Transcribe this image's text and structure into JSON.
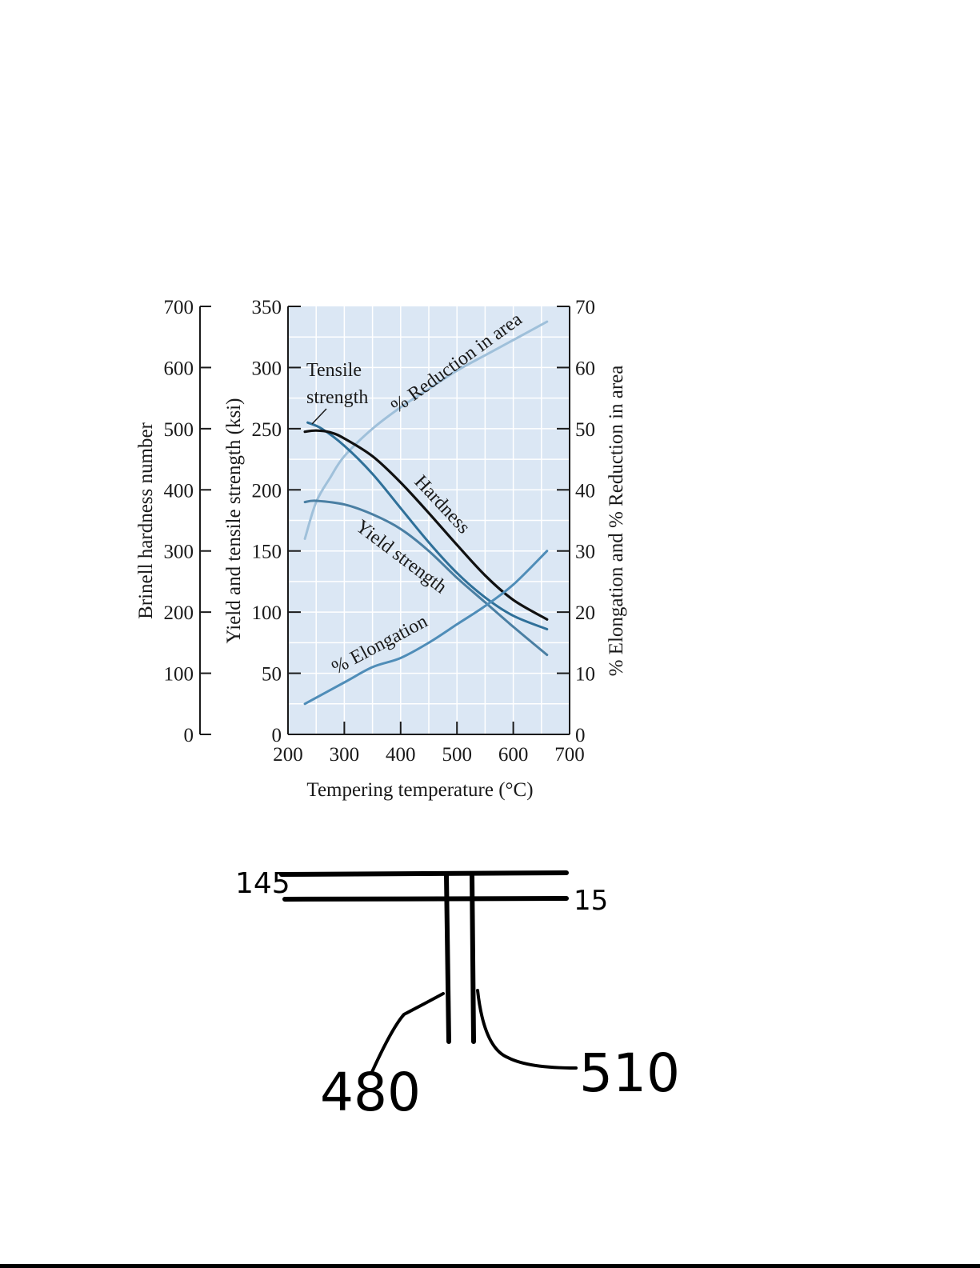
{
  "chart_data": {
    "type": "line",
    "xlabel": "Tempering temperature (°C)",
    "xlim": [
      200,
      700
    ],
    "xticks": [
      200,
      300,
      400,
      500,
      600,
      700
    ],
    "axes": {
      "hardness": {
        "label": "Brinell hardness number",
        "lim": [
          0,
          700
        ],
        "ticks": [
          0,
          100,
          200,
          300,
          400,
          500,
          600,
          700
        ]
      },
      "strength": {
        "label": "Yield and tensile strength (ksi)",
        "lim": [
          0,
          350
        ],
        "ticks": [
          0,
          50,
          100,
          150,
          200,
          250,
          300,
          350
        ]
      },
      "percent": {
        "label": "% Elongation and % Reduction in area",
        "lim": [
          0,
          70
        ],
        "ticks": [
          0,
          10,
          20,
          30,
          40,
          50,
          60,
          70
        ]
      }
    },
    "grid": true,
    "background_color": "#dbe7f4",
    "series": [
      {
        "name": "% Reduction in area",
        "axis": "percent",
        "color": "#9fc0da",
        "x": [
          230,
          250,
          275,
          300,
          350,
          400,
          450,
          500,
          550,
          600,
          660
        ],
        "y": [
          32,
          38,
          42,
          45.5,
          50,
          53.5,
          56.5,
          59.5,
          62,
          64.5,
          67.5
        ]
      },
      {
        "name": "Tensile strength",
        "axis": "strength",
        "color": "#2f7099",
        "x": [
          235,
          260,
          300,
          350,
          400,
          450,
          500,
          550,
          600,
          660
        ],
        "y": [
          255,
          250,
          236,
          213,
          185,
          157,
          132,
          112,
          97,
          86
        ]
      },
      {
        "name": "Hardness",
        "axis": "hardness",
        "color": "#111111",
        "x": [
          230,
          250,
          275,
          300,
          350,
          400,
          450,
          500,
          550,
          600,
          660
        ],
        "y": [
          495,
          497,
          494,
          484,
          455,
          412,
          362,
          310,
          260,
          220,
          188
        ]
      },
      {
        "name": "Yield strength",
        "axis": "strength",
        "color": "#4a7fa3",
        "x": [
          230,
          250,
          300,
          350,
          400,
          450,
          500,
          550,
          600,
          660
        ],
        "y": [
          190,
          191,
          188,
          180,
          168,
          150,
          128,
          108,
          88,
          65
        ]
      },
      {
        "name": "% Elongation",
        "axis": "percent",
        "color": "#4f8db8",
        "x": [
          230,
          300,
          350,
          400,
          450,
          500,
          550,
          600,
          660
        ],
        "y": [
          5,
          8.5,
          11,
          12.5,
          15,
          18,
          21,
          24.5,
          30
        ]
      }
    ],
    "annotations": [
      "Tensile strength",
      "Hardness",
      "Yield strength",
      "% Elongation",
      "% Reduction in area"
    ]
  },
  "sketch": {
    "label_top_left": "145",
    "label_top_right": "15",
    "label_bottom_left": "480",
    "label_bottom_right": "510"
  }
}
